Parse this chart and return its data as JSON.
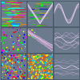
{
  "bg_color": "#6b7a8d",
  "n_rows": 3,
  "n_cols": 3,
  "figsize": [
    1.0,
    1.0
  ],
  "dpi": 100,
  "line_color": "#c0a8d0",
  "line_color_white": "#e8e0f0",
  "line_pink": "#e080c0",
  "sep_color": "#3a4855"
}
